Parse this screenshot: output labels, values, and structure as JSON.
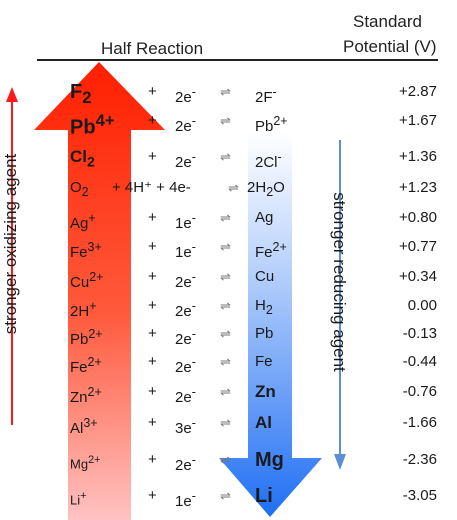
{
  "header": {
    "half_reaction": "Half Reaction",
    "potential_line1": "Standard",
    "potential_line2": "Potential (V)"
  },
  "side_labels": {
    "oxidizing": "stronger oxidizing agent",
    "reducing": "stronger reducing agent"
  },
  "colors": {
    "oxidizing_arrow": "#ff1f00",
    "reducing_arrow": "#2f7cf6",
    "side_arrow_red": "#ff1a1a",
    "side_arrow_blue": "#5b8ed6"
  },
  "equilibrium_symbol": "⇌",
  "reactions": [
    {
      "ox": "F",
      "ox_sub": "2",
      "ox_sup": "",
      "coef": "",
      "electrons": "2",
      "red": "2F",
      "red_sup": "-",
      "red_sub": "",
      "red_tail": "",
      "potential": "+2.87",
      "ox_style": "big",
      "red_style": ""
    },
    {
      "ox": "Pb",
      "ox_sub": "",
      "ox_sup": "4+",
      "coef": "",
      "electrons": "2",
      "red": "Pb",
      "red_sup": "2+",
      "red_sub": "",
      "red_tail": "",
      "potential": "+1.67",
      "ox_style": "big",
      "red_style": ""
    },
    {
      "ox": "Cl",
      "ox_sub": "2",
      "ox_sup": "",
      "coef": "",
      "electrons": "2",
      "red": "2Cl",
      "red_sup": "-",
      "red_sub": "",
      "red_tail": "",
      "potential": "+1.36",
      "ox_style": "bold",
      "red_style": ""
    },
    {
      "ox": "O",
      "ox_sub": "2",
      "ox_sup": "",
      "coef": "+ 4H⁺ + 4e-",
      "electrons": "",
      "red": "2H",
      "red_sup": "",
      "red_sub": "2",
      "red_tail": "O",
      "potential": "+1.23",
      "ox_style": "",
      "red_style": ""
    },
    {
      "ox": "Ag",
      "ox_sub": "",
      "ox_sup": "+",
      "coef": "",
      "electrons": "1",
      "red": "Ag",
      "red_sup": "",
      "red_sub": "",
      "red_tail": "",
      "potential": "+0.80",
      "ox_style": "",
      "red_style": ""
    },
    {
      "ox": "Fe",
      "ox_sub": "",
      "ox_sup": "3+",
      "coef": "",
      "electrons": "1",
      "red": "Fe",
      "red_sup": "2+",
      "red_sub": "",
      "red_tail": "",
      "potential": "+0.77",
      "ox_style": "",
      "red_style": ""
    },
    {
      "ox": "Cu",
      "ox_sub": "",
      "ox_sup": "2+",
      "coef": "",
      "electrons": "2",
      "red": "Cu",
      "red_sup": "",
      "red_sub": "",
      "red_tail": "",
      "potential": "+0.34",
      "ox_style": "",
      "red_style": ""
    },
    {
      "ox": "2H",
      "ox_sub": "",
      "ox_sup": "+",
      "coef": "",
      "electrons": "2",
      "red": "H",
      "red_sup": "",
      "red_sub": "2",
      "red_tail": "",
      "potential": "0.00",
      "ox_style": "",
      "red_style": ""
    },
    {
      "ox": "Pb",
      "ox_sub": "",
      "ox_sup": "2+",
      "coef": "",
      "electrons": "2",
      "red": "Pb",
      "red_sup": "",
      "red_sub": "",
      "red_tail": "",
      "potential": "-0.13",
      "ox_style": "",
      "red_style": ""
    },
    {
      "ox": "Fe",
      "ox_sub": "",
      "ox_sup": "2+",
      "coef": "",
      "electrons": "2",
      "red": "Fe",
      "red_sup": "",
      "red_sub": "",
      "red_tail": "",
      "potential": "-0.44",
      "ox_style": "",
      "red_style": ""
    },
    {
      "ox": "Zn",
      "ox_sub": "",
      "ox_sup": "2+",
      "coef": "",
      "electrons": "2",
      "red": "Zn",
      "red_sup": "",
      "red_sub": "",
      "red_tail": "",
      "potential": "-0.76",
      "ox_style": "",
      "red_style": "bold"
    },
    {
      "ox": "Al",
      "ox_sub": "",
      "ox_sup": "3+",
      "coef": "",
      "electrons": "3",
      "red": "Al",
      "red_sup": "",
      "red_sub": "",
      "red_tail": "",
      "potential": "-1.66",
      "ox_style": "",
      "red_style": "bold"
    },
    {
      "ox": "Mg",
      "ox_sub": "",
      "ox_sup": "2+",
      "coef": "",
      "electrons": "2",
      "red": "Mg",
      "red_sup": "",
      "red_sub": "",
      "red_tail": "",
      "potential": "-2.36",
      "ox_style": "small",
      "red_style": "big"
    },
    {
      "ox": "Li",
      "ox_sub": "",
      "ox_sup": "+",
      "coef": "",
      "electrons": "1",
      "red": "Li",
      "red_sup": "",
      "red_sub": "",
      "red_tail": "",
      "potential": "-3.05",
      "ox_style": "small",
      "red_style": "big"
    }
  ]
}
